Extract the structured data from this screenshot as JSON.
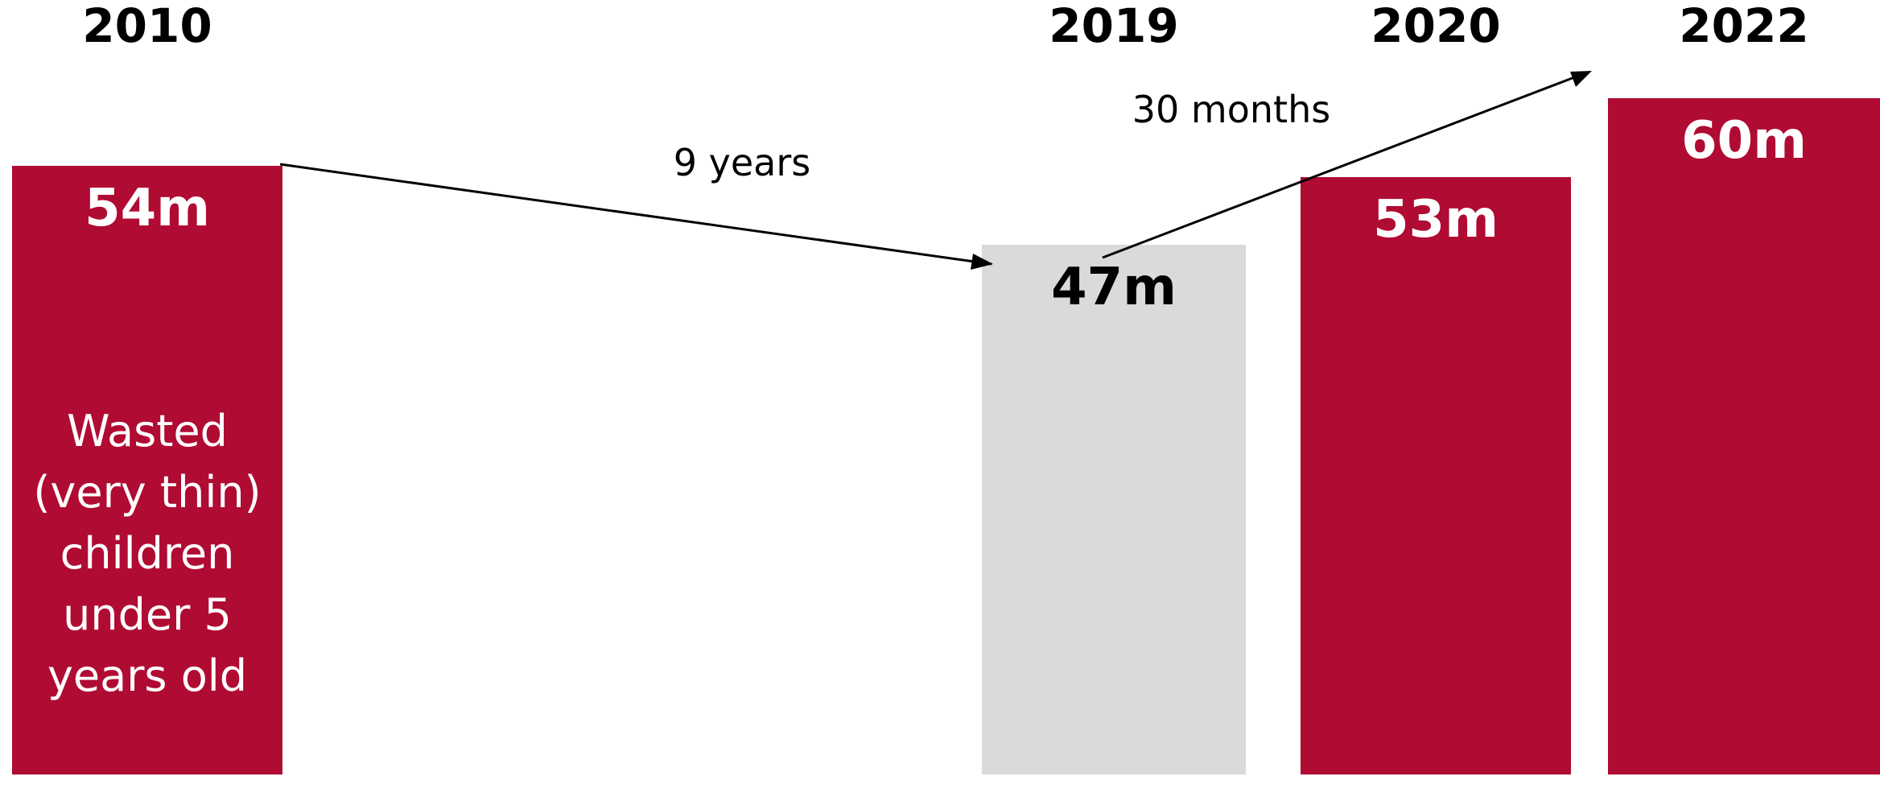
{
  "chart_data": {
    "type": "bar",
    "categories": [
      "2010",
      "2019",
      "2020",
      "2022"
    ],
    "values": [
      54,
      47,
      53,
      60
    ],
    "value_labels": [
      "54m",
      "47m",
      "53m",
      "60m"
    ],
    "bar_colors": [
      "#b00b33",
      "#d9dadc",
      "#b00b33",
      "#b00b33"
    ],
    "value_label_colors": [
      "#ffffff",
      "#000000",
      "#ffffff",
      "#ffffff"
    ],
    "description": [
      "Wasted",
      "(very thin)",
      "children",
      "under 5",
      "years old"
    ],
    "annotations": [
      {
        "text": "9 years"
      },
      {
        "text": "30 months"
      }
    ],
    "arrow_color": "#000000",
    "title": "",
    "xlabel": "",
    "ylabel": ""
  }
}
